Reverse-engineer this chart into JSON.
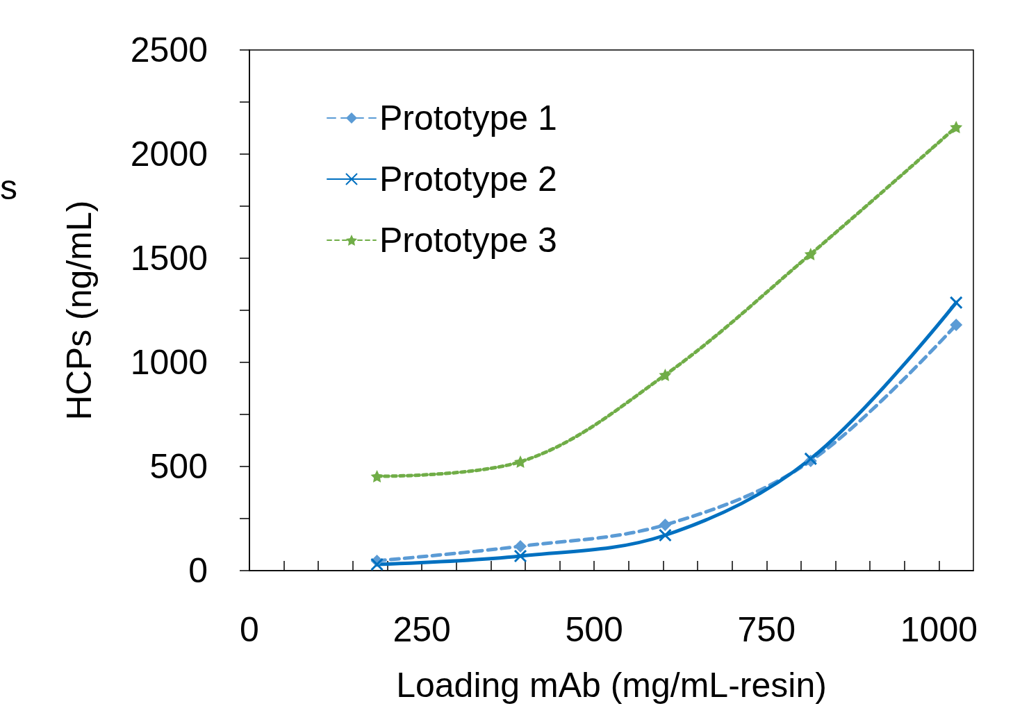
{
  "chart_data": {
    "type": "line",
    "xlabel": "Loading mAb (mg/mL-resin)",
    "ylabel": "HCPs (ng/mL)",
    "annotations": [
      "s"
    ],
    "xlim": [
      0,
      1050
    ],
    "xticks": [
      0,
      {
        "value": 50,
        "label": null
      },
      {
        "value": 100,
        "label": null
      },
      {
        "value": 150,
        "label": null
      },
      {
        "value": 200,
        "label": null
      },
      250,
      {
        "value": 300,
        "label": null
      },
      {
        "value": 350,
        "label": null
      },
      {
        "value": 400,
        "label": null
      },
      {
        "value": 450,
        "label": null
      },
      500,
      {
        "value": 550,
        "label": null
      },
      {
        "value": 600,
        "label": null
      },
      {
        "value": 650,
        "label": null
      },
      {
        "value": 700,
        "label": null
      },
      750,
      {
        "value": 800,
        "label": null
      },
      {
        "value": 850,
        "label": null
      },
      {
        "value": 900,
        "label": null
      },
      {
        "value": 950,
        "label": null
      },
      1000
    ],
    "ylim": [
      0,
      2500
    ],
    "yticks": [
      0,
      {
        "value": 250,
        "label": null
      },
      500,
      {
        "value": 750,
        "label": null
      },
      1000,
      {
        "value": 1250,
        "label": null
      },
      1500,
      {
        "value": 1750,
        "label": null
      },
      2000,
      {
        "value": 2250,
        "label": null
      },
      2500
    ],
    "x": [
      185,
      393,
      603,
      814,
      1025
    ],
    "grid": false,
    "legend": "top left",
    "series": [
      {
        "name": "Prototype 1",
        "color": "#5b9bd5",
        "marker": "diamond",
        "line_style": "dashed",
        "values": [
          47,
          117,
          220,
          527,
          1180
        ]
      },
      {
        "name": "Prototype 2",
        "color": "#0070c0",
        "marker": "cross",
        "line_style": "solid",
        "values": [
          30,
          70,
          170,
          537,
          1287
        ]
      },
      {
        "name": "Prototype 3",
        "color": "#70ad47",
        "marker": "star",
        "line_style": "dotted",
        "values": [
          453,
          523,
          940,
          1520,
          2130
        ]
      }
    ]
  }
}
